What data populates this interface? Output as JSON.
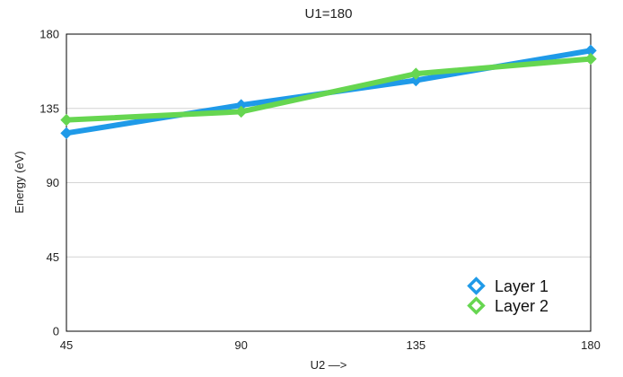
{
  "chart_data": {
    "type": "line",
    "title": "U1=180",
    "xlabel": "U2 —>",
    "ylabel": "Energy (eV)",
    "x": [
      45,
      90,
      135,
      180
    ],
    "x_tick_labels": [
      "45",
      "90",
      "135",
      "180"
    ],
    "y_ticks": [
      0,
      45,
      90,
      135,
      180
    ],
    "y_tick_labels": [
      "0",
      "45",
      "90",
      "135",
      "180"
    ],
    "ylim": [
      0,
      180
    ],
    "grid": true,
    "legend_position": "bottom-right",
    "series": [
      {
        "name": "Layer 1",
        "color": "#1f9ae8",
        "marker": "diamond",
        "values": [
          120,
          137,
          152,
          170
        ]
      },
      {
        "name": "Layer 2",
        "color": "#66d650",
        "marker": "diamond",
        "values": [
          128,
          133,
          156,
          165
        ]
      }
    ]
  }
}
